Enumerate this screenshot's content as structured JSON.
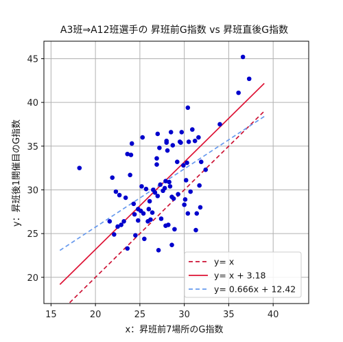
{
  "chart_data": {
    "type": "scatter",
    "title": "A3班⇒A12班選手の 昇班前G指数 vs 昇班直後G指数",
    "xlabel": "x：昇班前7場所のG指数",
    "ylabel": "y：昇班後1開催目のG指数",
    "xlim": [
      14.2,
      44.0
    ],
    "ylim": [
      17.0,
      47.0
    ],
    "xticks": [
      "15",
      "20",
      "25",
      "30",
      "35",
      "40"
    ],
    "yticks": [
      "20",
      "25",
      "30",
      "35",
      "40",
      "45"
    ],
    "grid": true,
    "legend_position": "bottom-right",
    "colors": {
      "points": "#0000cc",
      "identity": "#cc1133",
      "offset": "#dd1133",
      "regression": "#6699ee"
    },
    "points": [
      [
        18.2,
        32.5
      ],
      [
        21.6,
        26.4
      ],
      [
        21.9,
        31.4
      ],
      [
        22.1,
        24.9
      ],
      [
        22.3,
        29.8
      ],
      [
        22.5,
        25.8
      ],
      [
        22.7,
        29.4
      ],
      [
        22.9,
        26.0
      ],
      [
        23.2,
        26.4
      ],
      [
        23.4,
        29.1
      ],
      [
        23.6,
        23.3
      ],
      [
        23.6,
        34.1
      ],
      [
        23.9,
        31.7
      ],
      [
        24.0,
        34.0
      ],
      [
        24.1,
        35.3
      ],
      [
        24.3,
        28.4
      ],
      [
        24.4,
        27.2
      ],
      [
        24.5,
        24.8
      ],
      [
        24.8,
        27.8
      ],
      [
        24.8,
        26.5
      ],
      [
        25.1,
        27.6
      ],
      [
        25.2,
        30.4
      ],
      [
        25.3,
        36.0
      ],
      [
        25.4,
        27.3
      ],
      [
        25.5,
        24.4
      ],
      [
        25.7,
        30.1
      ],
      [
        25.9,
        26.4
      ],
      [
        26.0,
        27.8
      ],
      [
        26.1,
        28.7
      ],
      [
        26.2,
        26.6
      ],
      [
        26.4,
        27.4
      ],
      [
        26.5,
        30.0
      ],
      [
        26.7,
        29.7
      ],
      [
        26.9,
        33.6
      ],
      [
        26.9,
        32.9
      ],
      [
        27.0,
        36.4
      ],
      [
        27.0,
        29.3
      ],
      [
        27.1,
        23.1
      ],
      [
        27.2,
        34.8
      ],
      [
        27.3,
        30.6
      ],
      [
        27.4,
        26.7
      ],
      [
        27.6,
        29.9
      ],
      [
        27.8,
        30.2
      ],
      [
        27.9,
        31.0
      ],
      [
        27.9,
        25.9
      ],
      [
        28.0,
        35.4
      ],
      [
        28.0,
        35.6
      ],
      [
        28.1,
        34.5
      ],
      [
        28.2,
        26.0
      ],
      [
        28.3,
        30.9
      ],
      [
        28.4,
        30.4
      ],
      [
        28.5,
        36.6
      ],
      [
        28.6,
        29.2
      ],
      [
        28.6,
        23.7
      ],
      [
        28.7,
        35.1
      ],
      [
        28.8,
        29.0
      ],
      [
        28.9,
        25.5
      ],
      [
        29.2,
        33.2
      ],
      [
        29.3,
        29.5
      ],
      [
        29.5,
        35.5
      ],
      [
        29.6,
        35.4
      ],
      [
        29.7,
        36.6
      ],
      [
        29.9,
        32.8
      ],
      [
        30.0,
        28.3
      ],
      [
        30.1,
        28.9
      ],
      [
        30.2,
        31.1
      ],
      [
        30.3,
        33.1
      ],
      [
        30.4,
        27.3
      ],
      [
        30.4,
        39.4
      ],
      [
        30.5,
        35.5
      ],
      [
        30.7,
        29.8
      ],
      [
        30.9,
        36.9
      ],
      [
        31.2,
        35.6
      ],
      [
        31.3,
        25.4
      ],
      [
        31.4,
        27.3
      ],
      [
        31.6,
        36.0
      ],
      [
        31.7,
        30.5
      ],
      [
        31.8,
        28.0
      ],
      [
        31.9,
        33.2
      ],
      [
        32.4,
        32.3
      ],
      [
        34.0,
        37.5
      ],
      [
        36.1,
        41.1
      ],
      [
        36.6,
        45.2
      ],
      [
        37.3,
        42.7
      ]
    ],
    "series": [
      {
        "name": "y= x",
        "style": "dashed",
        "slope": 1.0,
        "intercept": 0.0,
        "x_range": [
          16.0,
          39.0
        ]
      },
      {
        "name": "y= x + 3.18",
        "style": "solid",
        "slope": 1.0,
        "intercept": 3.18,
        "x_range": [
          16.0,
          39.0
        ]
      },
      {
        "name": "y= 0.666x + 12.42",
        "style": "dashed",
        "slope": 0.666,
        "intercept": 12.42,
        "x_range": [
          16.0,
          39.0
        ]
      }
    ]
  }
}
